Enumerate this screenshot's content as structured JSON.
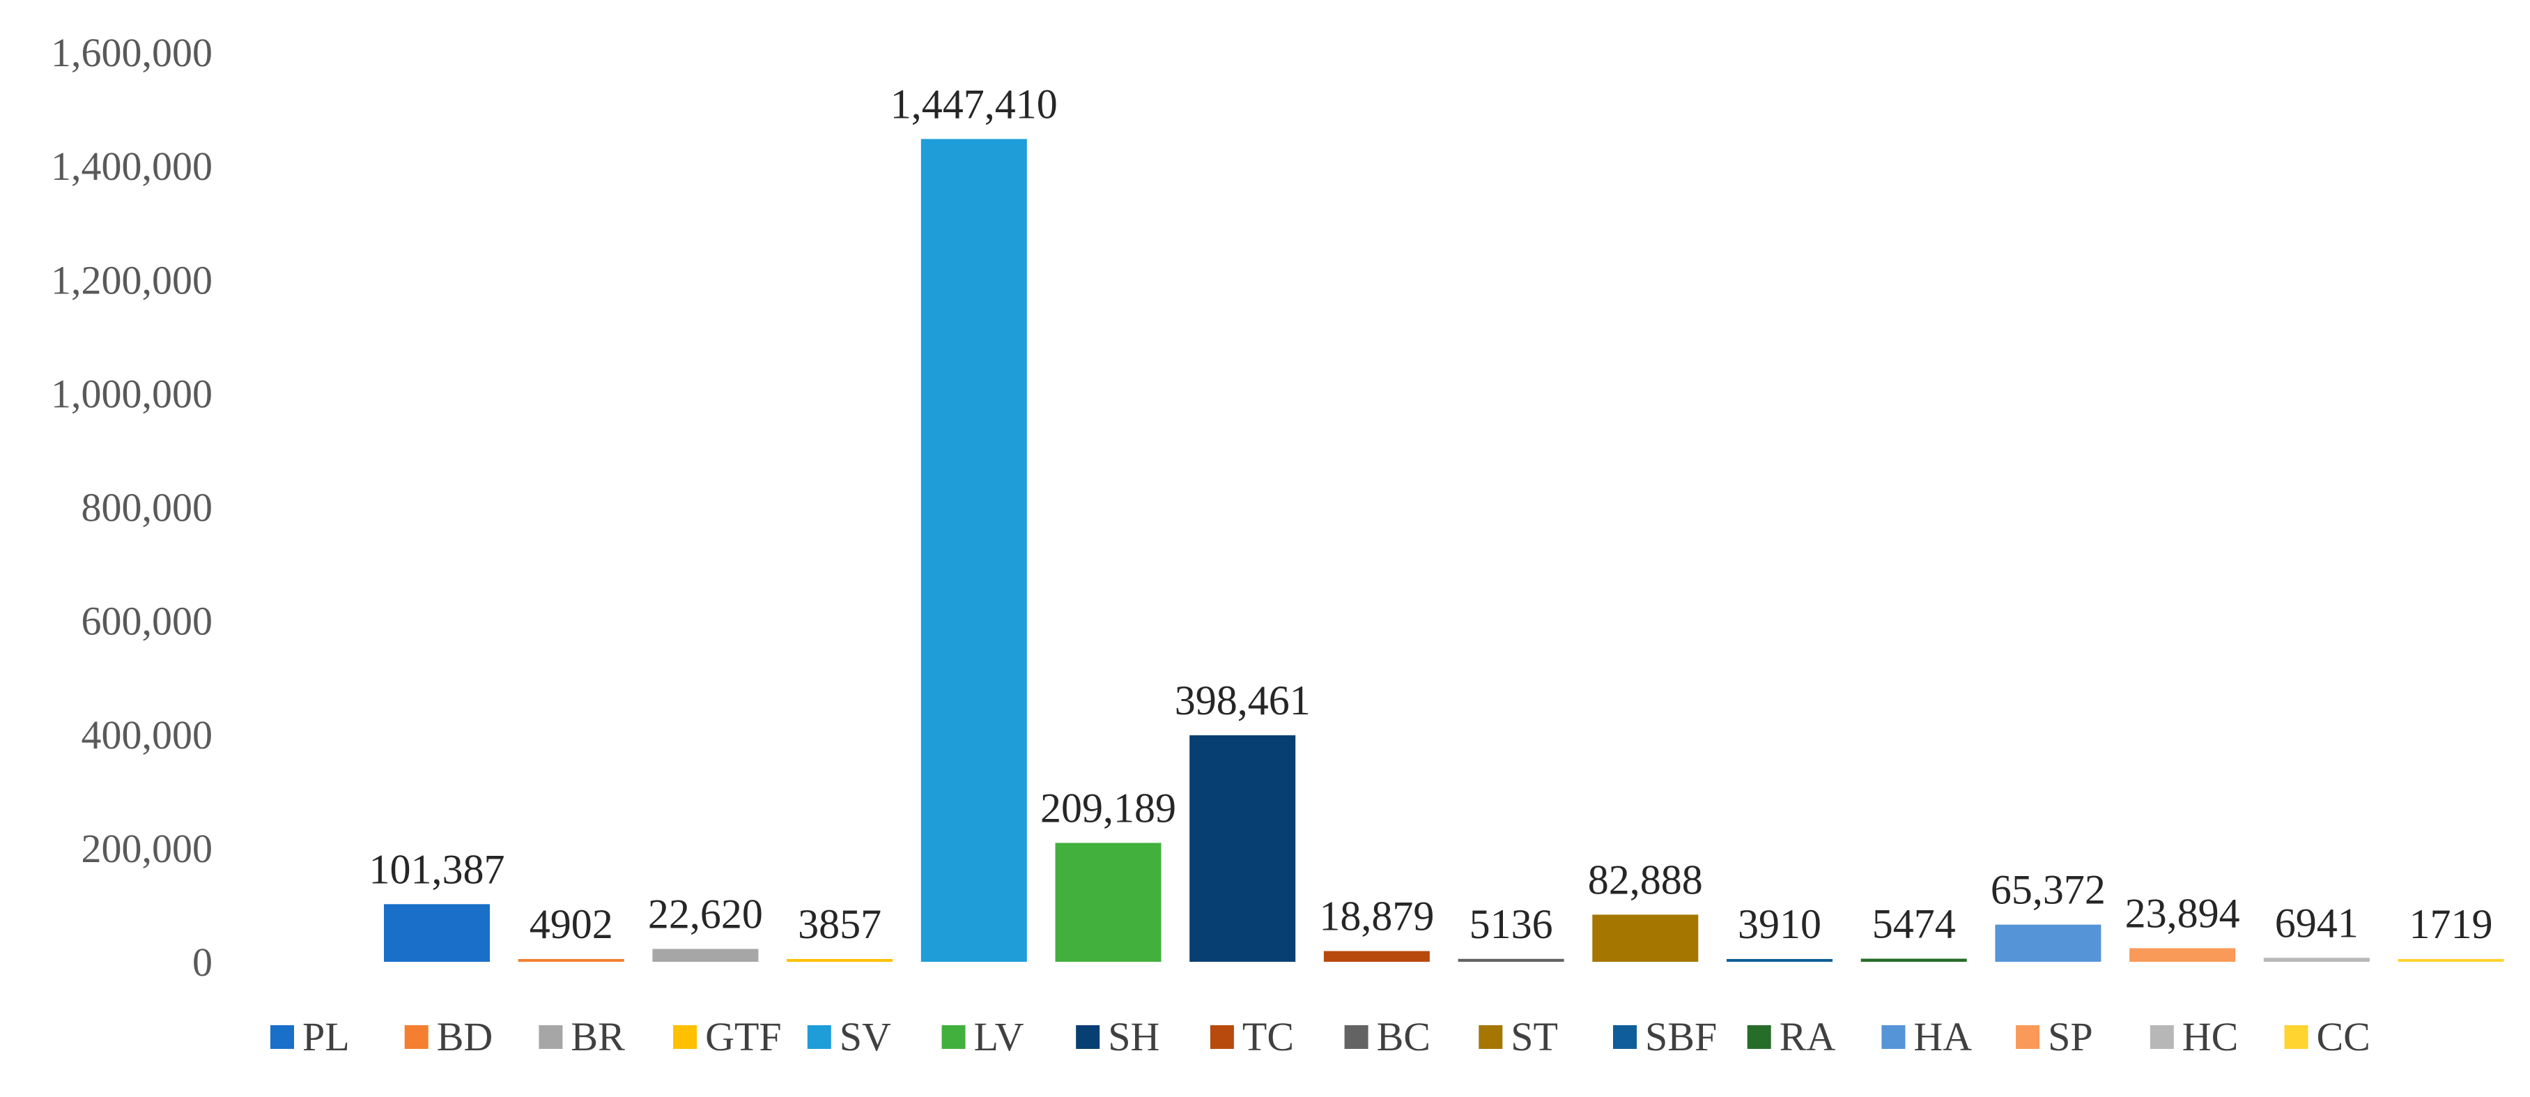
{
  "chart_data": {
    "type": "bar",
    "title": "",
    "xlabel": "",
    "ylabel": "",
    "ylim": [
      0,
      1600000
    ],
    "yticks": [
      0,
      200000,
      400000,
      600000,
      800000,
      1000000,
      1200000,
      1400000,
      1600000
    ],
    "ytick_labels": [
      "0",
      "200,000",
      "400,000",
      "600,000",
      "800,000",
      "1,000,000",
      "1,200,000",
      "1,400,000",
      "1,600,000"
    ],
    "grid": false,
    "legend_position": "bottom",
    "categories": [
      "PL",
      "BD",
      "BR",
      "GTF",
      "SV",
      "LV",
      "SH",
      "TC",
      "BC",
      "ST",
      "SBF",
      "RA",
      "HA",
      "SP",
      "HC",
      "CC"
    ],
    "values": [
      101387,
      4902,
      22620,
      3857,
      1447410,
      209189,
      398461,
      18879,
      5136,
      82888,
      3910,
      5474,
      65372,
      23894,
      6941,
      1719
    ],
    "data_labels": [
      "101,387",
      "4902",
      "22,620",
      "3857",
      "1,447,410",
      "209,189",
      "398,461",
      "18,879",
      "5136",
      "82,888",
      "3910",
      "5474",
      "65,372",
      "23,894",
      "6941",
      "1719"
    ],
    "colors": [
      "#1A6FC9",
      "#F47F30",
      "#A6A6A6",
      "#FFC000",
      "#1F9DD9",
      "#42B03D",
      "#073F72",
      "#B84A0E",
      "#636363",
      "#A57600",
      "#0F5E99",
      "#276D2A",
      "#5694D8",
      "#F99A58",
      "#B7B7B7",
      "#FFD330"
    ]
  }
}
